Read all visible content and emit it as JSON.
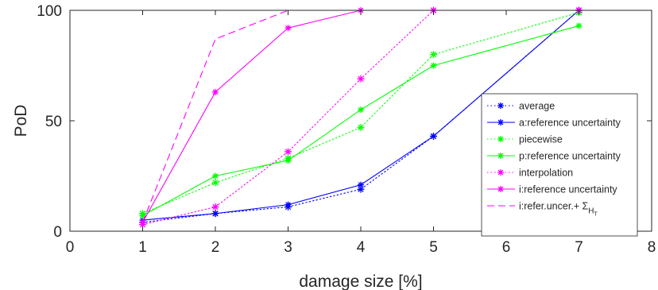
{
  "chart_data": {
    "type": "line",
    "title": "",
    "xlabel": "damage size [%]",
    "ylabel": "PoD",
    "xlim": [
      0,
      8
    ],
    "ylim": [
      0,
      100
    ],
    "xticks": [
      "0",
      "1",
      "2",
      "3",
      "4",
      "5",
      "6",
      "7",
      "8"
    ],
    "yticks": [
      "0",
      "50",
      "100"
    ],
    "grid": false,
    "legend_position": "right",
    "series": [
      {
        "name": "average",
        "color": "#0000ff",
        "line": "dotted",
        "marker": "*",
        "markerSolid": true,
        "x": [
          1,
          2,
          3,
          4,
          5,
          7
        ],
        "y": [
          4,
          8,
          11,
          19,
          43,
          100
        ]
      },
      {
        "name": "a:reference uncertainty",
        "color": "#0000ff",
        "line": "solid",
        "marker": "*",
        "markerSolid": false,
        "x": [
          1,
          2,
          3,
          4,
          5,
          7
        ],
        "y": [
          5,
          8,
          12,
          21,
          43,
          100
        ]
      },
      {
        "name": "piecewise",
        "color": "#00ff00",
        "line": "dotted",
        "marker": "*",
        "markerSolid": true,
        "x": [
          1,
          2,
          3,
          4,
          5,
          7
        ],
        "y": [
          8,
          22,
          33,
          47,
          80,
          99
        ]
      },
      {
        "name": "p:reference uncertainty",
        "color": "#00ff00",
        "line": "solid",
        "marker": "*",
        "markerSolid": false,
        "x": [
          1,
          2,
          3,
          4,
          5,
          7
        ],
        "y": [
          7,
          25,
          32,
          55,
          75,
          93
        ]
      },
      {
        "name": "interpolation",
        "color": "#ff00ff",
        "line": "dotted",
        "marker": "*",
        "markerSolid": true,
        "x": [
          1,
          2,
          3,
          4,
          5,
          7
        ],
        "y": [
          3,
          11,
          36,
          69,
          100,
          100
        ]
      },
      {
        "name": "i:reference uncertainty",
        "color": "#ff00ff",
        "line": "solid",
        "marker": "*",
        "markerSolid": false,
        "x": [
          1,
          2,
          3,
          4,
          5,
          7
        ],
        "y": [
          4,
          63,
          92,
          100,
          100,
          100
        ]
      },
      {
        "name": "i:refer.uncer.+ Σ",
        "subscript": "H",
        "subsubscript": "T",
        "color": "#ff00ff",
        "line": "dashed",
        "marker": "none",
        "markerSolid": false,
        "x": [
          1,
          2,
          3,
          4,
          5,
          7
        ],
        "y": [
          4,
          87,
          100,
          100,
          100,
          100
        ]
      }
    ]
  }
}
